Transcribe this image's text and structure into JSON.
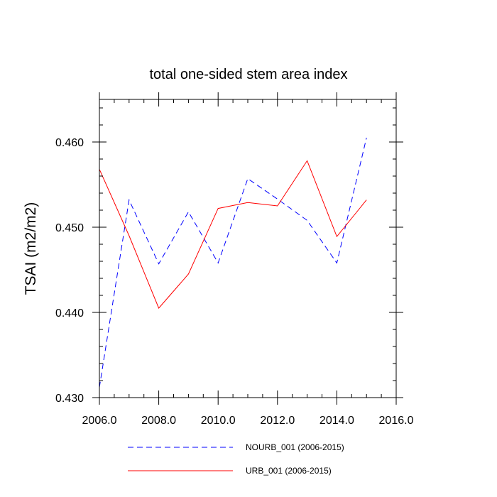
{
  "chart_data": {
    "type": "line",
    "title": "total one-sided stem area index",
    "xlabel": "",
    "ylabel": "TSAI  (m2/m2)",
    "xlim": [
      2006,
      2016
    ],
    "ylim": [
      0.43,
      0.465
    ],
    "x_ticks": [
      2006,
      2008,
      2010,
      2012,
      2014,
      2016
    ],
    "x_tick_labels": [
      "2006.0",
      "2008.0",
      "2010.0",
      "2012.0",
      "2014.0",
      "2016.0"
    ],
    "y_ticks": [
      0.43,
      0.44,
      0.45,
      0.46
    ],
    "y_tick_labels": [
      "0.430",
      "0.440",
      "0.450",
      "0.460"
    ],
    "grid": false,
    "legend_position": "bottom",
    "x": [
      2006,
      2007,
      2008,
      2009,
      2010,
      2011,
      2012,
      2013,
      2014,
      2015
    ],
    "series": [
      {
        "name": "NOURB_001 (2006-2015)",
        "color": "#0000ff",
        "dash": "dashed",
        "values": [
          0.4312,
          0.4532,
          0.4457,
          0.4518,
          0.4458,
          0.4557,
          0.4533,
          0.4508,
          0.4458,
          0.4605
        ]
      },
      {
        "name": "URB_001 (2006-2015)",
        "color": "#ff0000",
        "dash": "solid",
        "values": [
          0.4568,
          0.449,
          0.4405,
          0.4445,
          0.4522,
          0.4529,
          0.4525,
          0.4578,
          0.4489,
          0.4532
        ]
      }
    ]
  }
}
